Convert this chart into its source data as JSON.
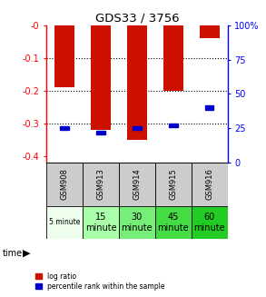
{
  "title": "GDS33 / 3756",
  "samples": [
    "GSM908",
    "GSM913",
    "GSM914",
    "GSM915",
    "GSM916"
  ],
  "time_labels": [
    "5 minute",
    "15\nminute",
    "30\nminute",
    "45\nminute",
    "60\nminute"
  ],
  "log_ratios": [
    -0.19,
    -0.32,
    -0.35,
    -0.2,
    -0.04
  ],
  "percentile_ranks": [
    25,
    22,
    25,
    27,
    40
  ],
  "ylim_left": [
    -0.42,
    0.0
  ],
  "ylim_right": [
    0,
    100
  ],
  "yticks_left": [
    0.0,
    -0.1,
    -0.2,
    -0.3,
    -0.4
  ],
  "yticks_right": [
    0,
    25,
    50,
    75,
    100
  ],
  "bar_color": "#cc1100",
  "percentile_color": "#0000cc",
  "bar_width": 0.55,
  "percentile_marker_size": 5.0,
  "time_bg": [
    "#eeffee",
    "#aaffaa",
    "#77ee77",
    "#44dd44",
    "#22cc22"
  ],
  "gsm_bg": "#cccccc"
}
